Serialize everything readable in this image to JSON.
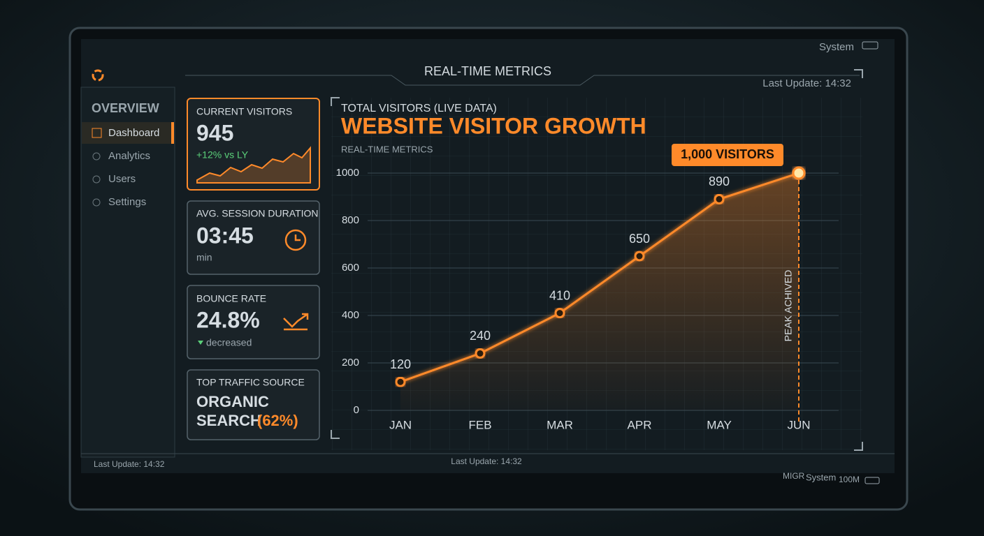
{
  "header": {
    "title": "REAL-TIME METRICS",
    "system": "System",
    "last_update": "Last Update: 14:32"
  },
  "sidebar": {
    "heading": "OVERVIEW",
    "items": [
      "Dashboard",
      "Analytics",
      "Users",
      "Settings"
    ]
  },
  "cards": [
    {
      "label": "CURRENT VISITORS",
      "value": "945",
      "note": "+12% vs LY"
    },
    {
      "label": "AVG. SESSION DURATION",
      "value": "03:45",
      "note": "min"
    },
    {
      "label": "BOUNCE RATE",
      "value": "24.8%",
      "note": "decreased"
    },
    {
      "label": "TOP TRAFFIC SOURCE",
      "value": "ORGANIC",
      "value2": "SEARCH",
      "note": "(62%)"
    }
  ],
  "footer": {
    "left": "Last Update: 14:32",
    "center": "Last Update: 14:32",
    "tag": "MIGR",
    "system": "System",
    "size": "100M"
  },
  "chart_data": {
    "type": "line",
    "kicker": "TOTAL VISITORS (LIVE DATA)",
    "title": "WEBSITE VISITOR GROWTH",
    "subtitle": "REAL-TIME METRICS",
    "categories": [
      "JAN",
      "FEB",
      "MAR",
      "APR",
      "MAY",
      "JUN"
    ],
    "values": [
      120,
      240,
      410,
      650,
      890,
      1000
    ],
    "value_labels": [
      "120",
      "240",
      "410",
      "650",
      "890",
      "1,000 VISITORS"
    ],
    "annotation": "PEAK ACHIVED",
    "color": "#ff8a2a",
    "ylim": [
      0,
      1000
    ],
    "yticks": [
      0,
      200,
      400,
      600,
      800,
      1000
    ],
    "grid": true
  }
}
